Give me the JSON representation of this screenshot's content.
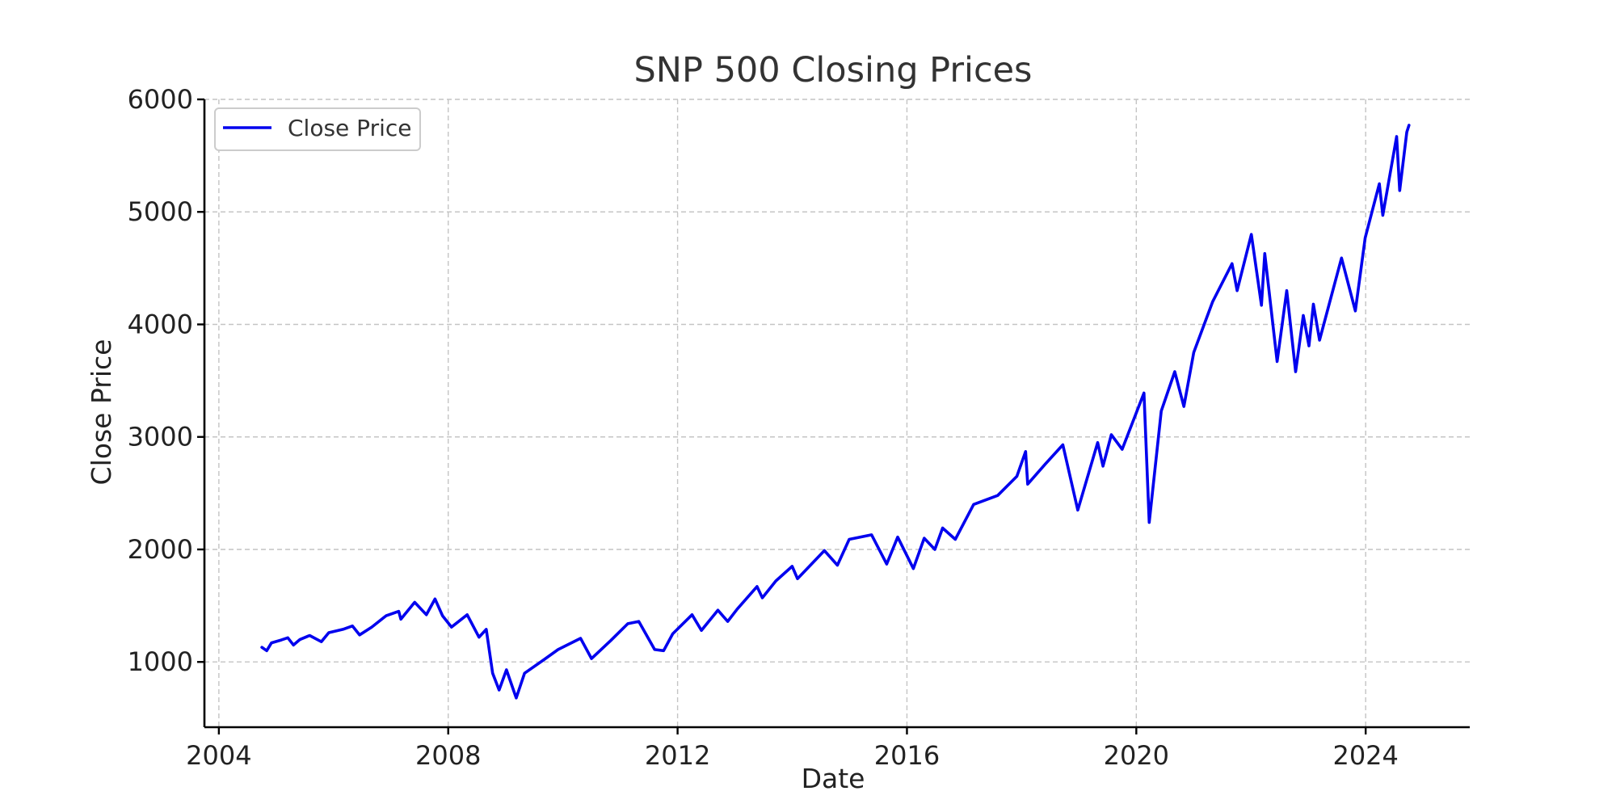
{
  "chart_data": {
    "type": "line",
    "title": "SNP 500 Closing Prices",
    "xlabel": "Date",
    "ylabel": "Close Price",
    "xlim": [
      "2003-10-01",
      "2025-10-25"
    ],
    "ylim": [
      420,
      6000
    ],
    "x_ticks": [
      "2004",
      "2008",
      "2012",
      "2016",
      "2020",
      "2024"
    ],
    "y_ticks": [
      1000,
      2000,
      3000,
      4000,
      5000,
      6000
    ],
    "grid": true,
    "legend_position": "top-left",
    "series": [
      {
        "name": "Close Price",
        "color": "#0000ee",
        "points": [
          [
            "2004-10-01",
            1130
          ],
          [
            "2004-11-01",
            1100
          ],
          [
            "2004-12-01",
            1170
          ],
          [
            "2005-02-01",
            1195
          ],
          [
            "2005-03-15",
            1215
          ],
          [
            "2005-04-20",
            1150
          ],
          [
            "2005-06-01",
            1200
          ],
          [
            "2005-08-01",
            1235
          ],
          [
            "2005-10-15",
            1180
          ],
          [
            "2005-12-01",
            1260
          ],
          [
            "2006-03-01",
            1290
          ],
          [
            "2006-05-01",
            1320
          ],
          [
            "2006-06-15",
            1240
          ],
          [
            "2006-09-01",
            1310
          ],
          [
            "2006-12-01",
            1410
          ],
          [
            "2007-02-20",
            1450
          ],
          [
            "2007-03-05",
            1380
          ],
          [
            "2007-06-01",
            1530
          ],
          [
            "2007-08-15",
            1420
          ],
          [
            "2007-10-09",
            1560
          ],
          [
            "2007-11-26",
            1410
          ],
          [
            "2008-01-22",
            1310
          ],
          [
            "2008-05-01",
            1420
          ],
          [
            "2008-07-15",
            1220
          ],
          [
            "2008-08-30",
            1290
          ],
          [
            "2008-10-10",
            900
          ],
          [
            "2008-11-20",
            750
          ],
          [
            "2009-01-06",
            930
          ],
          [
            "2009-03-09",
            680
          ],
          [
            "2009-05-01",
            900
          ],
          [
            "2009-09-01",
            1020
          ],
          [
            "2009-12-01",
            1110
          ],
          [
            "2010-04-23",
            1210
          ],
          [
            "2010-07-02",
            1030
          ],
          [
            "2010-11-01",
            1190
          ],
          [
            "2011-02-18",
            1340
          ],
          [
            "2011-04-29",
            1360
          ],
          [
            "2011-08-08",
            1110
          ],
          [
            "2011-10-04",
            1100
          ],
          [
            "2011-12-01",
            1250
          ],
          [
            "2012-04-02",
            1420
          ],
          [
            "2012-06-01",
            1280
          ],
          [
            "2012-09-14",
            1460
          ],
          [
            "2012-11-15",
            1360
          ],
          [
            "2013-01-15",
            1470
          ],
          [
            "2013-05-21",
            1670
          ],
          [
            "2013-06-24",
            1570
          ],
          [
            "2013-09-18",
            1720
          ],
          [
            "2013-12-31",
            1850
          ],
          [
            "2014-02-03",
            1740
          ],
          [
            "2014-07-24",
            1990
          ],
          [
            "2014-10-15",
            1860
          ],
          [
            "2014-12-29",
            2090
          ],
          [
            "2015-05-21",
            2130
          ],
          [
            "2015-08-25",
            1870
          ],
          [
            "2015-11-03",
            2110
          ],
          [
            "2016-02-11",
            1830
          ],
          [
            "2016-04-20",
            2100
          ],
          [
            "2016-06-27",
            2000
          ],
          [
            "2016-08-15",
            2190
          ],
          [
            "2016-11-04",
            2090
          ],
          [
            "2017-03-01",
            2400
          ],
          [
            "2017-08-01",
            2480
          ],
          [
            "2017-12-01",
            2650
          ],
          [
            "2018-01-26",
            2870
          ],
          [
            "2018-02-08",
            2580
          ],
          [
            "2018-06-01",
            2760
          ],
          [
            "2018-09-20",
            2930
          ],
          [
            "2018-12-24",
            2350
          ],
          [
            "2019-04-30",
            2950
          ],
          [
            "2019-06-03",
            2740
          ],
          [
            "2019-07-26",
            3020
          ],
          [
            "2019-10-03",
            2890
          ],
          [
            "2020-02-19",
            3390
          ],
          [
            "2020-03-23",
            2240
          ],
          [
            "2020-06-08",
            3230
          ],
          [
            "2020-09-02",
            3580
          ],
          [
            "2020-10-30",
            3270
          ],
          [
            "2021-01-01",
            3750
          ],
          [
            "2021-05-01",
            4200
          ],
          [
            "2021-09-02",
            4540
          ],
          [
            "2021-10-04",
            4300
          ],
          [
            "2022-01-03",
            4800
          ],
          [
            "2022-03-08",
            4170
          ],
          [
            "2022-03-29",
            4630
          ],
          [
            "2022-06-16",
            3670
          ],
          [
            "2022-08-16",
            4300
          ],
          [
            "2022-10-12",
            3580
          ],
          [
            "2022-11-30",
            4080
          ],
          [
            "2023-01-05",
            3810
          ],
          [
            "2023-02-02",
            4180
          ],
          [
            "2023-03-13",
            3860
          ],
          [
            "2023-07-31",
            4590
          ],
          [
            "2023-10-27",
            4120
          ],
          [
            "2023-12-29",
            4770
          ],
          [
            "2024-03-28",
            5250
          ],
          [
            "2024-04-19",
            4970
          ],
          [
            "2024-07-16",
            5670
          ],
          [
            "2024-08-05",
            5190
          ],
          [
            "2024-09-19",
            5710
          ],
          [
            "2024-10-03",
            5770
          ]
        ]
      }
    ]
  }
}
